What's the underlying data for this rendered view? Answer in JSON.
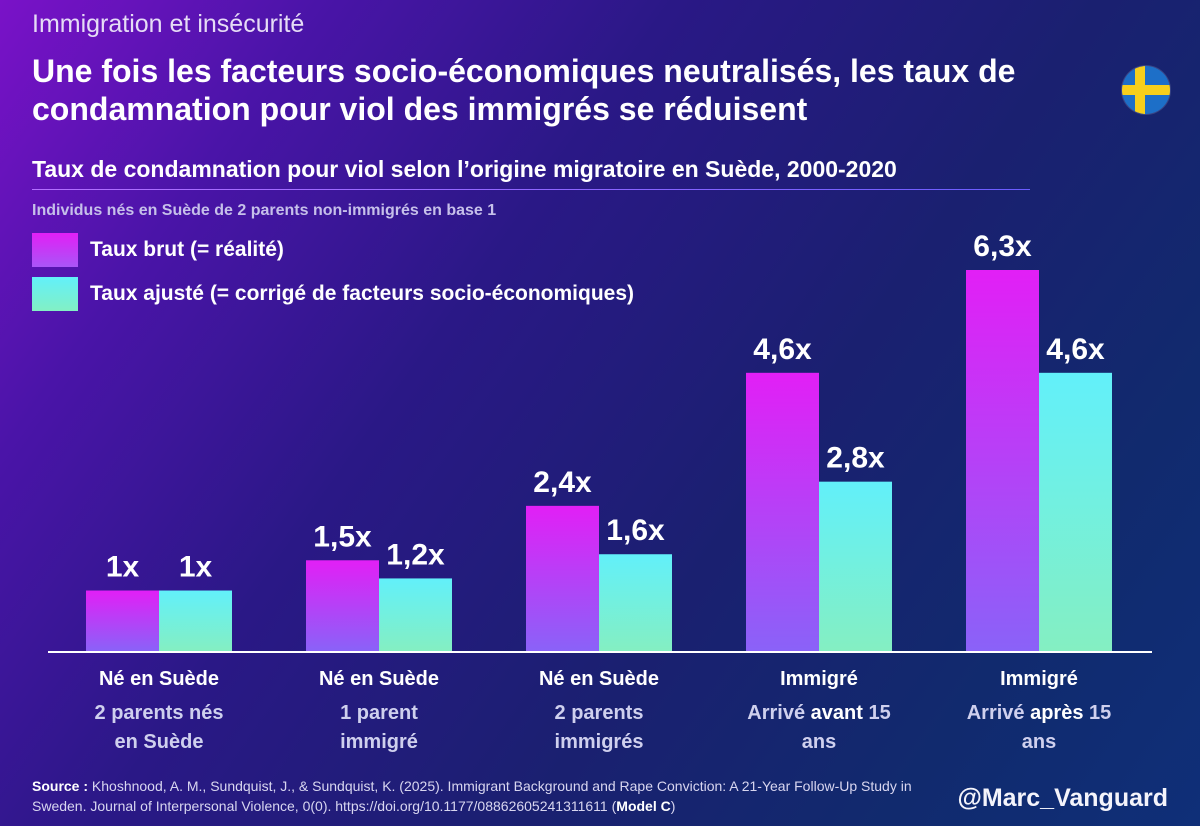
{
  "header": {
    "topic": "Immigration et insécurité",
    "headline": "Une fois les facteurs socio-économiques neutralisés, les taux de condamnation pour viol des immigrés se réduisent",
    "flag": "sweden-flag-icon"
  },
  "chart_data": {
    "type": "bar",
    "title": "Taux de condamnation pour viol selon l’origine migratoire en Suède, 2000-2020",
    "note": "Individus nés en Suède de 2 parents non-immigrés en base 1",
    "categories": [
      {
        "line1": "Né en Suède",
        "line2": [
          "2 parents nés",
          "en Suède"
        ]
      },
      {
        "line1": "Né en Suède",
        "line2": [
          "1 parent",
          "immigré"
        ]
      },
      {
        "line1": "Né en Suède",
        "line2": [
          "2 parents",
          "immigrés"
        ]
      },
      {
        "line1": "Immigré",
        "line2": [
          [
            "Arrivé ",
            "avant",
            " 15"
          ],
          "ans"
        ]
      },
      {
        "line1": "Immigré",
        "line2": [
          [
            "Arrivé ",
            "après",
            " 15"
          ],
          "ans"
        ]
      }
    ],
    "series": [
      {
        "name": "Taux brut (= réalité)",
        "values": [
          1,
          1.5,
          2.4,
          4.6,
          6.3
        ],
        "labels": [
          "1x",
          "1,5x",
          "2,4x",
          "4,6x",
          "6,3x"
        ],
        "color_top": "#e21ff6",
        "color_bottom": "#8a62f8"
      },
      {
        "name": "Taux ajusté (= corrigé de facteurs socio-économiques)",
        "values": [
          1,
          1.2,
          1.6,
          2.8,
          4.6
        ],
        "labels": [
          "1x",
          "1,2x",
          "1,6x",
          "2,8x",
          "4,6x"
        ],
        "color_top": "#62f0fa",
        "color_bottom": "#82f0c4"
      }
    ],
    "ylim": [
      0,
      6.3
    ],
    "grid": false
  },
  "footer": {
    "source_label": "Source :",
    "source_text": " Khoshnood, A. M., Sundquist, J., & Sundquist, K. (2025). Immigrant Background and Rape Conviction: A 21-Year Follow-Up Study in Sweden. Journal of Interpersonal Violence, 0(0). https://doi.org/10.1177/08862605241311611 (",
    "source_model": "Model C",
    "source_close": ")",
    "handle": "@Marc_Vanguard"
  }
}
